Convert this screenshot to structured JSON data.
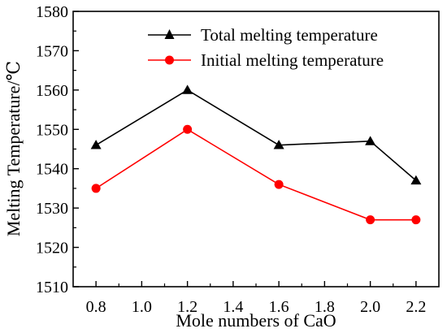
{
  "chart_data": {
    "type": "line",
    "xlabel": "Mole numbers of CaO",
    "ylabel": "Melting Temperature/℃",
    "xlim": [
      0.7,
      2.3
    ],
    "ylim": [
      1510,
      1580
    ],
    "x_ticks": [
      "0.8",
      "1.0",
      "1.2",
      "1.4",
      "1.6",
      "1.8",
      "2.0",
      "2.2"
    ],
    "y_ticks": [
      "1510",
      "1520",
      "1530",
      "1540",
      "1550",
      "1560",
      "1570",
      "1580"
    ],
    "legend_position": "top-right",
    "grid": false,
    "series": [
      {
        "name": "Total melting temperature",
        "color": "#000000",
        "marker": "triangle",
        "x": [
          0.8,
          1.2,
          1.6,
          2.0,
          2.2
        ],
        "values": [
          1546,
          1560,
          1546,
          1547,
          1537
        ]
      },
      {
        "name": "Initial melting temperature",
        "color": "#ff0000",
        "marker": "circle",
        "x": [
          0.8,
          1.2,
          1.6,
          2.0,
          2.2
        ],
        "values": [
          1535,
          1550,
          1536,
          1527,
          1527
        ]
      }
    ]
  }
}
